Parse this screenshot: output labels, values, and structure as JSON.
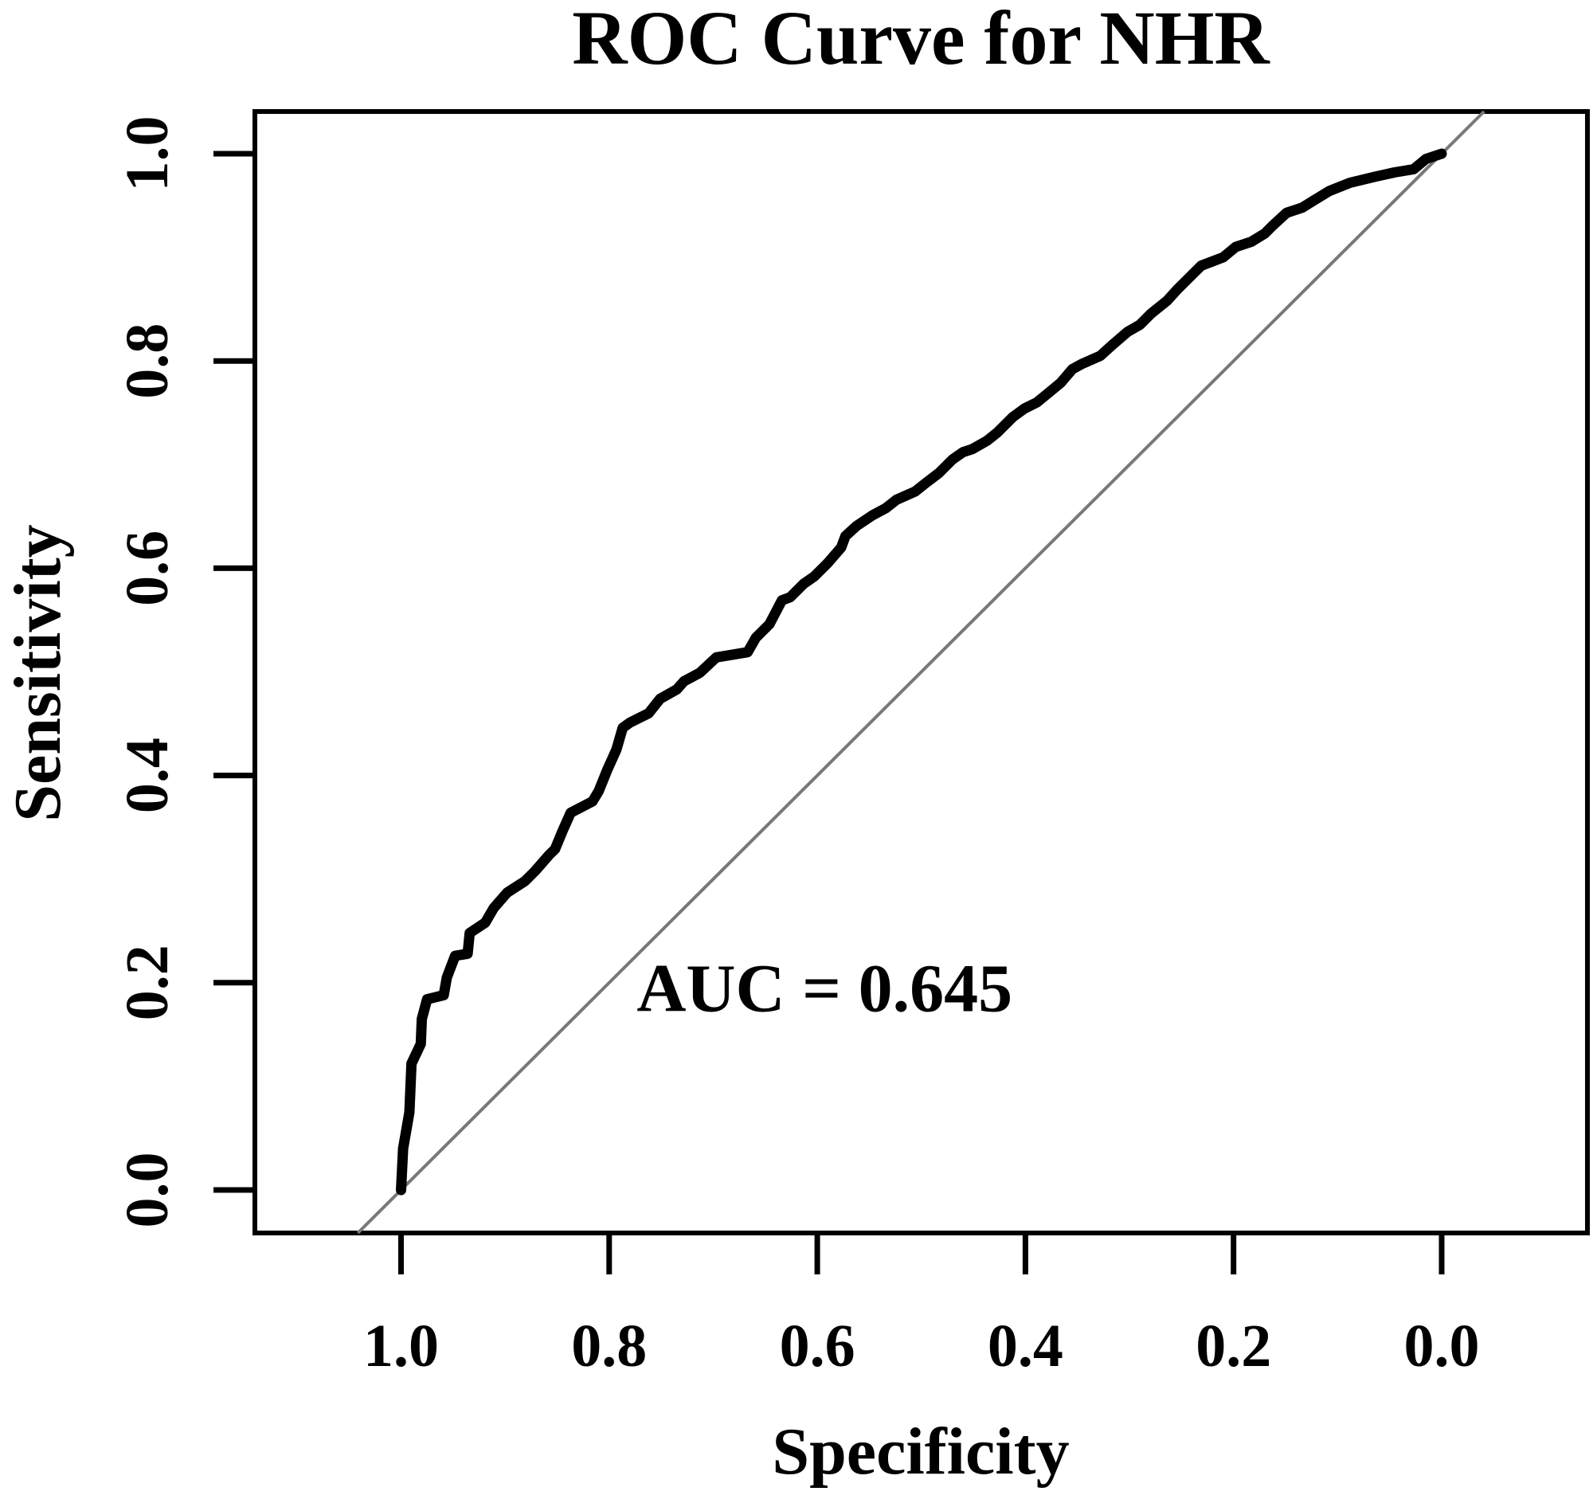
{
  "page": {
    "background": "#ffffff"
  },
  "chart_data": {
    "type": "line",
    "title": "ROC Curve for NHR",
    "xlabel": "Specificity",
    "ylabel": "Sensitivity",
    "grid": false,
    "legend": "none",
    "x_axis": {
      "reversed": true,
      "range": [
        1.0,
        0.0
      ],
      "ticks": [
        1.0,
        0.8,
        0.6,
        0.4,
        0.2,
        0.0
      ],
      "tick_labels": [
        "1.0",
        "0.8",
        "0.6",
        "0.4",
        "0.2",
        "0.0"
      ]
    },
    "y_axis": {
      "range": [
        0.0,
        1.0
      ],
      "ticks": [
        1.0,
        0.8,
        0.6,
        0.4,
        0.2,
        0.0
      ],
      "tick_labels": [
        "1.0",
        "0.8",
        "0.6",
        "0.4",
        "0.2",
        "0.0"
      ]
    },
    "series": [
      {
        "name": "ROC curve (NHR)",
        "type": "step-line",
        "color": "#000000",
        "line_width": 13,
        "points": [
          [
            1.0,
            0.0
          ],
          [
            0.998,
            0.04
          ],
          [
            0.992,
            0.075
          ],
          [
            0.99,
            0.122
          ],
          [
            0.981,
            0.141
          ],
          [
            0.98,
            0.165
          ],
          [
            0.975,
            0.184
          ],
          [
            0.959,
            0.188
          ],
          [
            0.956,
            0.205
          ],
          [
            0.948,
            0.226
          ],
          [
            0.936,
            0.228
          ],
          [
            0.934,
            0.248
          ],
          [
            0.919,
            0.258
          ],
          [
            0.911,
            0.272
          ],
          [
            0.898,
            0.287
          ],
          [
            0.881,
            0.298
          ],
          [
            0.871,
            0.308
          ],
          [
            0.858,
            0.323
          ],
          [
            0.852,
            0.329
          ],
          [
            0.845,
            0.346
          ],
          [
            0.837,
            0.364
          ],
          [
            0.816,
            0.375
          ],
          [
            0.81,
            0.385
          ],
          [
            0.802,
            0.405
          ],
          [
            0.793,
            0.425
          ],
          [
            0.787,
            0.446
          ],
          [
            0.78,
            0.451
          ],
          [
            0.762,
            0.46
          ],
          [
            0.751,
            0.474
          ],
          [
            0.735,
            0.483
          ],
          [
            0.728,
            0.491
          ],
          [
            0.713,
            0.499
          ],
          [
            0.697,
            0.514
          ],
          [
            0.667,
            0.519
          ],
          [
            0.659,
            0.533
          ],
          [
            0.646,
            0.546
          ],
          [
            0.634,
            0.569
          ],
          [
            0.626,
            0.572
          ],
          [
            0.613,
            0.585
          ],
          [
            0.603,
            0.592
          ],
          [
            0.59,
            0.605
          ],
          [
            0.577,
            0.62
          ],
          [
            0.573,
            0.631
          ],
          [
            0.562,
            0.641
          ],
          [
            0.547,
            0.651
          ],
          [
            0.534,
            0.658
          ],
          [
            0.524,
            0.666
          ],
          [
            0.506,
            0.674
          ],
          [
            0.496,
            0.682
          ],
          [
            0.483,
            0.692
          ],
          [
            0.47,
            0.705
          ],
          [
            0.46,
            0.712
          ],
          [
            0.451,
            0.715
          ],
          [
            0.437,
            0.723
          ],
          [
            0.427,
            0.731
          ],
          [
            0.412,
            0.746
          ],
          [
            0.401,
            0.754
          ],
          [
            0.389,
            0.76
          ],
          [
            0.378,
            0.769
          ],
          [
            0.366,
            0.779
          ],
          [
            0.355,
            0.792
          ],
          [
            0.346,
            0.797
          ],
          [
            0.328,
            0.805
          ],
          [
            0.317,
            0.815
          ],
          [
            0.302,
            0.828
          ],
          [
            0.29,
            0.835
          ],
          [
            0.282,
            0.843
          ],
          [
            0.279,
            0.846
          ],
          [
            0.264,
            0.858
          ],
          [
            0.254,
            0.869
          ],
          [
            0.244,
            0.879
          ],
          [
            0.231,
            0.892
          ],
          [
            0.21,
            0.9
          ],
          [
            0.198,
            0.91
          ],
          [
            0.183,
            0.915
          ],
          [
            0.17,
            0.923
          ],
          [
            0.162,
            0.931
          ],
          [
            0.149,
            0.943
          ],
          [
            0.134,
            0.948
          ],
          [
            0.121,
            0.956
          ],
          [
            0.108,
            0.964
          ],
          [
            0.088,
            0.972
          ],
          [
            0.063,
            0.978
          ],
          [
            0.045,
            0.982
          ],
          [
            0.027,
            0.985
          ],
          [
            0.015,
            0.995
          ],
          [
            0.0,
            1.0
          ]
        ]
      },
      {
        "name": "chance reference diagonal",
        "type": "reference-line",
        "color": "#787878",
        "line_width": 4,
        "from": [
          1.0,
          0.0
        ],
        "to": [
          0.0,
          1.0
        ]
      }
    ],
    "annotation": {
      "text": "AUC = 0.645",
      "auc_value": 0.645,
      "color": "#EE1111",
      "position": {
        "specificity": 0.593,
        "sensitivity": 0.195
      }
    }
  }
}
